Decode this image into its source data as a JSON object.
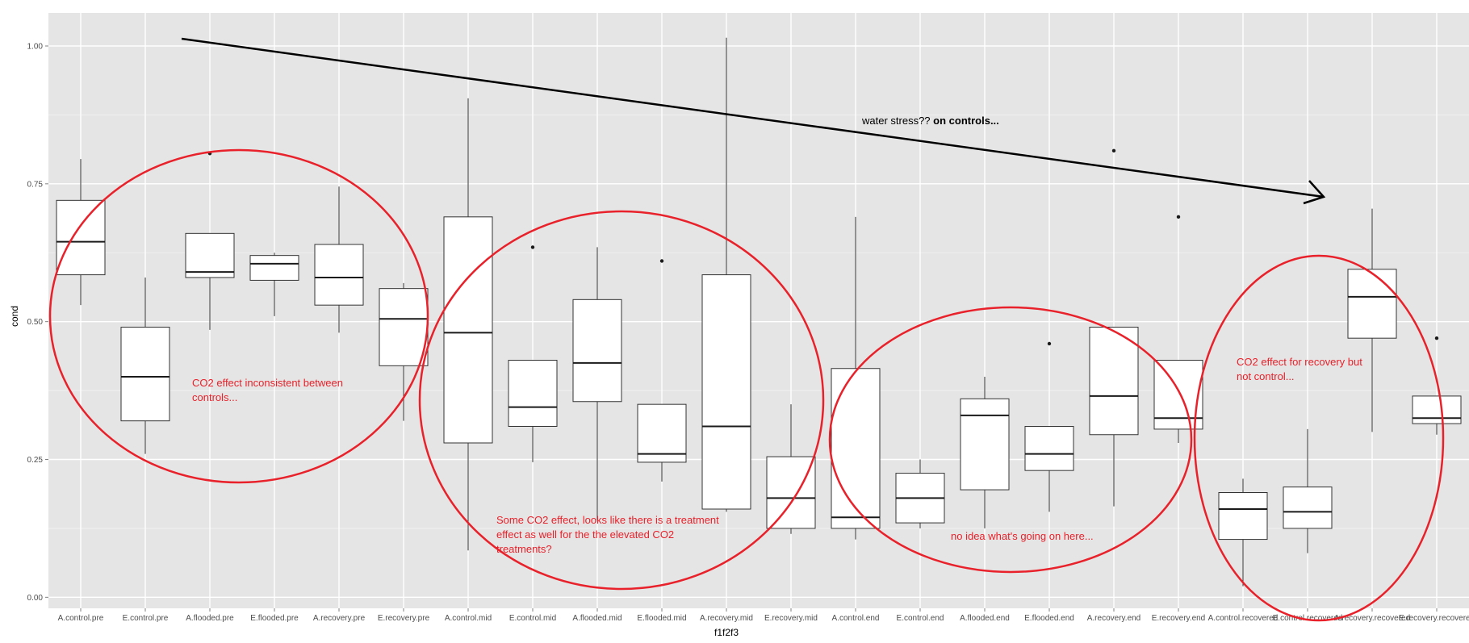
{
  "chart_data": {
    "type": "box",
    "xlabel": "f1f2f3",
    "ylabel": "cond",
    "ylim": [
      -0.02,
      1.06
    ],
    "yticks": [
      0.0,
      0.25,
      0.5,
      0.75,
      1.0
    ],
    "ytick_labels": [
      "0.00",
      "0.25",
      "0.50",
      "0.75",
      "1.00"
    ],
    "grid": true,
    "background": "#e5e5e5",
    "categories": [
      "A.control.pre",
      "E.control.pre",
      "A.flooded.pre",
      "E.flooded.pre",
      "A.recovery.pre",
      "E.recovery.pre",
      "A.control.mid",
      "E.control.mid",
      "A.flooded.mid",
      "E.flooded.mid",
      "A.recovery.mid",
      "E.recovery.mid",
      "A.control.end",
      "E.control.end",
      "A.flooded.end",
      "E.flooded.end",
      "A.recovery.end",
      "E.recovery.end",
      "A.control.recovered",
      "E.control.recovered",
      "A.recovery.recovered",
      "E.recovery.recovered"
    ],
    "boxes": [
      {
        "category": "A.control.pre",
        "whisker_low": 0.53,
        "q1": 0.585,
        "median": 0.645,
        "q3": 0.72,
        "whisker_high": 0.795,
        "outliers": []
      },
      {
        "category": "E.control.pre",
        "whisker_low": 0.26,
        "q1": 0.32,
        "median": 0.4,
        "q3": 0.49,
        "whisker_high": 0.58,
        "outliers": []
      },
      {
        "category": "A.flooded.pre",
        "whisker_low": 0.485,
        "q1": 0.58,
        "median": 0.59,
        "q3": 0.66,
        "whisker_high": 0.66,
        "outliers": [
          0.805
        ]
      },
      {
        "category": "E.flooded.pre",
        "whisker_low": 0.51,
        "q1": 0.575,
        "median": 0.605,
        "q3": 0.62,
        "whisker_high": 0.625,
        "outliers": []
      },
      {
        "category": "A.recovery.pre",
        "whisker_low": 0.48,
        "q1": 0.53,
        "median": 0.58,
        "q3": 0.64,
        "whisker_high": 0.745,
        "outliers": []
      },
      {
        "category": "E.recovery.pre",
        "whisker_low": 0.32,
        "q1": 0.42,
        "median": 0.505,
        "q3": 0.56,
        "whisker_high": 0.57,
        "outliers": []
      },
      {
        "category": "A.control.mid",
        "whisker_low": 0.085,
        "q1": 0.28,
        "median": 0.48,
        "q3": 0.69,
        "whisker_high": 0.905,
        "outliers": []
      },
      {
        "category": "E.control.mid",
        "whisker_low": 0.245,
        "q1": 0.31,
        "median": 0.345,
        "q3": 0.43,
        "whisker_high": 0.43,
        "outliers": [
          0.635
        ]
      },
      {
        "category": "A.flooded.mid",
        "whisker_low": 0.14,
        "q1": 0.355,
        "median": 0.425,
        "q3": 0.54,
        "whisker_high": 0.635,
        "outliers": []
      },
      {
        "category": "E.flooded.mid",
        "whisker_low": 0.21,
        "q1": 0.245,
        "median": 0.26,
        "q3": 0.35,
        "whisker_high": 0.35,
        "outliers": [
          0.61
        ]
      },
      {
        "category": "A.recovery.mid",
        "whisker_low": 0.155,
        "q1": 0.16,
        "median": 0.31,
        "q3": 0.585,
        "whisker_high": 1.015,
        "outliers": []
      },
      {
        "category": "E.recovery.mid",
        "whisker_low": 0.115,
        "q1": 0.125,
        "median": 0.18,
        "q3": 0.255,
        "whisker_high": 0.35,
        "outliers": []
      },
      {
        "category": "A.control.end",
        "whisker_low": 0.105,
        "q1": 0.125,
        "median": 0.145,
        "q3": 0.415,
        "whisker_high": 0.69,
        "outliers": []
      },
      {
        "category": "E.control.end",
        "whisker_low": 0.125,
        "q1": 0.135,
        "median": 0.18,
        "q3": 0.225,
        "whisker_high": 0.25,
        "outliers": []
      },
      {
        "category": "A.flooded.end",
        "whisker_low": 0.125,
        "q1": 0.195,
        "median": 0.33,
        "q3": 0.36,
        "whisker_high": 0.4,
        "outliers": []
      },
      {
        "category": "E.flooded.end",
        "whisker_low": 0.155,
        "q1": 0.23,
        "median": 0.26,
        "q3": 0.31,
        "whisker_high": 0.31,
        "outliers": [
          0.46
        ]
      },
      {
        "category": "A.recovery.end",
        "whisker_low": 0.165,
        "q1": 0.295,
        "median": 0.365,
        "q3": 0.49,
        "whisker_high": 0.49,
        "outliers": [
          0.81
        ]
      },
      {
        "category": "E.recovery.end",
        "whisker_low": 0.28,
        "q1": 0.305,
        "median": 0.325,
        "q3": 0.43,
        "whisker_high": 0.43,
        "outliers": [
          0.69
        ]
      },
      {
        "category": "A.control.recovered",
        "whisker_low": 0.02,
        "q1": 0.105,
        "median": 0.16,
        "q3": 0.19,
        "whisker_high": 0.215,
        "outliers": []
      },
      {
        "category": "E.control.recovered",
        "whisker_low": 0.08,
        "q1": 0.125,
        "median": 0.155,
        "q3": 0.2,
        "whisker_high": 0.305,
        "outliers": []
      },
      {
        "category": "A.recovery.recovered",
        "whisker_low": 0.3,
        "q1": 0.47,
        "median": 0.545,
        "q3": 0.595,
        "whisker_high": 0.705,
        "outliers": []
      },
      {
        "category": "E.recovery.recovered",
        "whisker_low": 0.295,
        "q1": 0.315,
        "median": 0.325,
        "q3": 0.365,
        "whisker_high": 0.365,
        "outliers": [
          0.47
        ]
      }
    ],
    "annotations": {
      "arrow_text_regular": "water stress??",
      "arrow_text_bold": "on controls...",
      "note_pre": [
        "CO2 effect inconsistent between",
        "controls..."
      ],
      "note_mid": [
        "Some CO2 effect, looks like there is a treatment",
        "effect as well for the the elevated CO2",
        "treatments?"
      ],
      "note_end": [
        "no idea what's going on here..."
      ],
      "note_recovered": [
        "CO2 effect for recovery but",
        "not control..."
      ]
    },
    "colors": {
      "panel": "#e5e5e5",
      "grid": "#ffffff",
      "box_fill": "#ffffff",
      "box_stroke": "#333333",
      "annotation_red": "#e8212a",
      "arrow": "#000000"
    }
  }
}
